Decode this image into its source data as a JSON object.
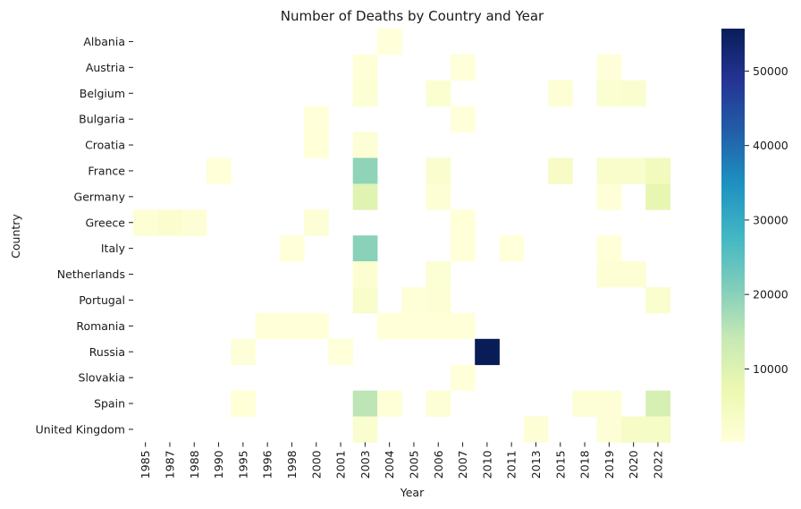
{
  "chart_data": {
    "type": "heatmap",
    "title": "Number of Deaths by Country and Year",
    "xlabel": "Year",
    "ylabel": "Country",
    "x": [
      "1985",
      "1987",
      "1988",
      "1990",
      "1995",
      "1996",
      "1998",
      "2000",
      "2001",
      "2003",
      "2004",
      "2005",
      "2006",
      "2007",
      "2010",
      "2011",
      "2013",
      "2015",
      "2018",
      "2019",
      "2020",
      "2022"
    ],
    "y": [
      "Albania",
      "Austria",
      "Belgium",
      "Bulgaria",
      "Croatia",
      "France",
      "Germany",
      "Greece",
      "Italy",
      "Netherlands",
      "Portugal",
      "Romania",
      "Russia",
      "Slovakia",
      "Spain",
      "United Kingdom"
    ],
    "cells": [
      {
        "country": "Albania",
        "year": "2004",
        "value": 200
      },
      {
        "country": "Austria",
        "year": "2003",
        "value": 500
      },
      {
        "country": "Austria",
        "year": "2007",
        "value": 200
      },
      {
        "country": "Austria",
        "year": "2019",
        "value": 400
      },
      {
        "country": "Belgium",
        "year": "2003",
        "value": 1200
      },
      {
        "country": "Belgium",
        "year": "2006",
        "value": 1600
      },
      {
        "country": "Belgium",
        "year": "2015",
        "value": 1000
      },
      {
        "country": "Belgium",
        "year": "2019",
        "value": 1600
      },
      {
        "country": "Belgium",
        "year": "2020",
        "value": 2000
      },
      {
        "country": "Bulgaria",
        "year": "2000",
        "value": 200
      },
      {
        "country": "Bulgaria",
        "year": "2007",
        "value": 200
      },
      {
        "country": "Croatia",
        "year": "2000",
        "value": 300
      },
      {
        "country": "Croatia",
        "year": "2003",
        "value": 800
      },
      {
        "country": "France",
        "year": "1990",
        "value": 300
      },
      {
        "country": "France",
        "year": "2003",
        "value": 19500
      },
      {
        "country": "France",
        "year": "2006",
        "value": 2100
      },
      {
        "country": "France",
        "year": "2015",
        "value": 3300
      },
      {
        "country": "France",
        "year": "2019",
        "value": 2500
      },
      {
        "country": "France",
        "year": "2020",
        "value": 2600
      },
      {
        "country": "France",
        "year": "2022",
        "value": 5000
      },
      {
        "country": "Germany",
        "year": "2003",
        "value": 9500
      },
      {
        "country": "Germany",
        "year": "2006",
        "value": 1000
      },
      {
        "country": "Germany",
        "year": "2019",
        "value": 500
      },
      {
        "country": "Germany",
        "year": "2022",
        "value": 8200
      },
      {
        "country": "Greece",
        "year": "1985",
        "value": 1100
      },
      {
        "country": "Greece",
        "year": "1987",
        "value": 1900
      },
      {
        "country": "Greece",
        "year": "1988",
        "value": 700
      },
      {
        "country": "Greece",
        "year": "2000",
        "value": 700
      },
      {
        "country": "Greece",
        "year": "2007",
        "value": 300
      },
      {
        "country": "Italy",
        "year": "1998",
        "value": 200
      },
      {
        "country": "Italy",
        "year": "2003",
        "value": 20000
      },
      {
        "country": "Italy",
        "year": "2007",
        "value": 300
      },
      {
        "country": "Italy",
        "year": "2011",
        "value": 200
      },
      {
        "country": "Italy",
        "year": "2019",
        "value": 300
      },
      {
        "country": "Netherlands",
        "year": "2003",
        "value": 1400
      },
      {
        "country": "Netherlands",
        "year": "2006",
        "value": 1300
      },
      {
        "country": "Netherlands",
        "year": "2019",
        "value": 1000
      },
      {
        "country": "Netherlands",
        "year": "2020",
        "value": 1100
      },
      {
        "country": "Portugal",
        "year": "2003",
        "value": 2700
      },
      {
        "country": "Portugal",
        "year": "2005",
        "value": 500
      },
      {
        "country": "Portugal",
        "year": "2006",
        "value": 1000
      },
      {
        "country": "Portugal",
        "year": "2022",
        "value": 2200
      },
      {
        "country": "Romania",
        "year": "1996",
        "value": 300
      },
      {
        "country": "Romania",
        "year": "1998",
        "value": 300
      },
      {
        "country": "Romania",
        "year": "2000",
        "value": 300
      },
      {
        "country": "Romania",
        "year": "2004",
        "value": 300
      },
      {
        "country": "Romania",
        "year": "2005",
        "value": 300
      },
      {
        "country": "Romania",
        "year": "2006",
        "value": 300
      },
      {
        "country": "Romania",
        "year": "2007",
        "value": 300
      },
      {
        "country": "Russia",
        "year": "1995",
        "value": 400
      },
      {
        "country": "Russia",
        "year": "2001",
        "value": 200
      },
      {
        "country": "Russia",
        "year": "2010",
        "value": 55700
      },
      {
        "country": "Slovakia",
        "year": "2007",
        "value": 200
      },
      {
        "country": "Spain",
        "year": "1995",
        "value": 300
      },
      {
        "country": "Spain",
        "year": "2003",
        "value": 15000
      },
      {
        "country": "Spain",
        "year": "2004",
        "value": 500
      },
      {
        "country": "Spain",
        "year": "2006",
        "value": 700
      },
      {
        "country": "Spain",
        "year": "2018",
        "value": 700
      },
      {
        "country": "Spain",
        "year": "2019",
        "value": 700
      },
      {
        "country": "Spain",
        "year": "2022",
        "value": 11300
      },
      {
        "country": "United Kingdom",
        "year": "2003",
        "value": 2000
      },
      {
        "country": "United Kingdom",
        "year": "2013",
        "value": 700
      },
      {
        "country": "United Kingdom",
        "year": "2019",
        "value": 900
      },
      {
        "country": "United Kingdom",
        "year": "2020",
        "value": 3300
      },
      {
        "country": "United Kingdom",
        "year": "2022",
        "value": 3500
      }
    ],
    "colorbar": {
      "colormap": "YlGnBu",
      "vmin": 200,
      "vmax": 55700,
      "ticks": [
        10000,
        20000,
        30000,
        40000,
        50000
      ],
      "tick_labels": [
        "10000",
        "20000",
        "30000",
        "40000",
        "50000"
      ]
    },
    "grid": false,
    "legend": "colorbar-right"
  }
}
